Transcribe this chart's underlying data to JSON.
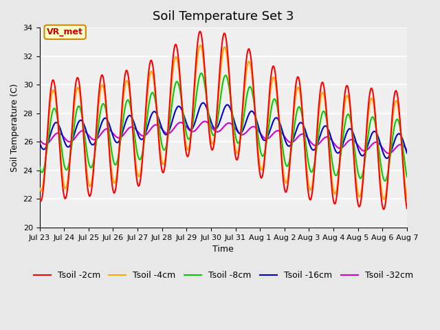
{
  "title": "Soil Temperature Set 3",
  "xlabel": "Time",
  "ylabel": "Soil Temperature (C)",
  "ylim": [
    20,
    34
  ],
  "xtick_labels": [
    "Jul 23",
    "Jul 24",
    "Jul 25",
    "Jul 26",
    "Jul 27",
    "Jul 28",
    "Jul 29",
    "Jul 30",
    "Jul 31",
    "Aug 1",
    "Aug 2",
    "Aug 3",
    "Aug 4",
    "Aug 5",
    "Aug 6",
    "Aug 7"
  ],
  "ytick_values": [
    20,
    22,
    24,
    26,
    28,
    30,
    32,
    34
  ],
  "series": {
    "Tsoil -2cm": {
      "color": "#ff0000",
      "linewidth": 1.5
    },
    "Tsoil -4cm": {
      "color": "#ffa500",
      "linewidth": 1.5
    },
    "Tsoil -8cm": {
      "color": "#00cc00",
      "linewidth": 1.5
    },
    "Tsoil -16cm": {
      "color": "#0000cc",
      "linewidth": 1.5
    },
    "Tsoil -32cm": {
      "color": "#cc00cc",
      "linewidth": 1.5
    }
  },
  "annotation_text": "VR_met",
  "annotation_color": "#cc0000",
  "background_color": "#e8e8e8",
  "plot_bg_color": "#f0f0f0",
  "grid_color": "white",
  "title_fontsize": 13,
  "label_fontsize": 9,
  "tick_fontsize": 8
}
